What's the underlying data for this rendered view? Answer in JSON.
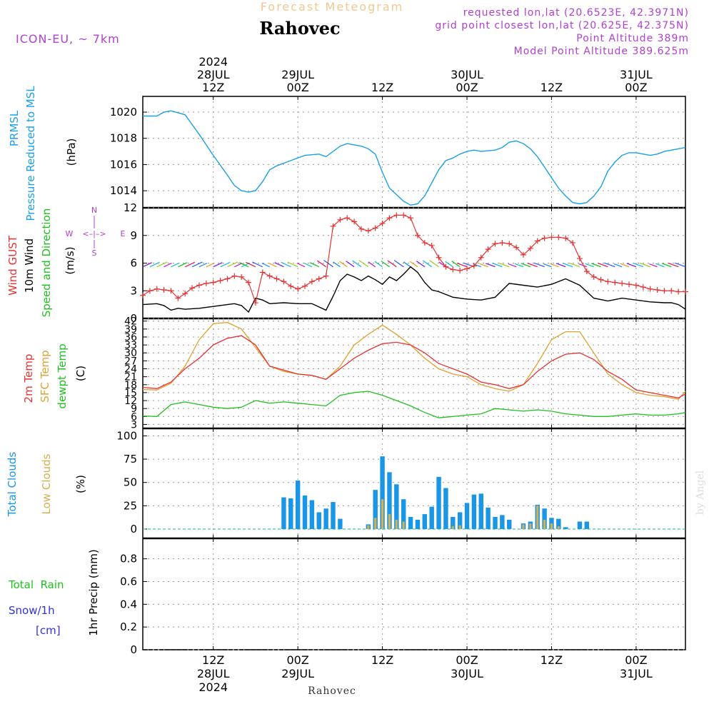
{
  "header": {
    "super_title": "Forecast Meteogram",
    "location": "Rahovec",
    "model": "ICON-EU, ~ 7km",
    "requested": "requested lon,lat (20.6523E, 42.3971N)",
    "grid_point": "grid point closest lon,lat (20.625E, 42.375N)",
    "point_altitude": "Point Altitude 389m",
    "model_point_altitude": "Model Point Altitude 389.625m",
    "footer_location": "Rahovec",
    "watermark": "by Angel"
  },
  "time_axis": {
    "top": [
      {
        "hour": "12Z",
        "date": "28JUL",
        "year": "2024"
      },
      {
        "hour": "00Z",
        "date": "29JUL"
      },
      {
        "hour": "12Z"
      },
      {
        "hour": "00Z",
        "date": "30JUL"
      },
      {
        "hour": "12Z"
      },
      {
        "hour": "00Z",
        "date": "31JUL"
      }
    ],
    "bottom": [
      {
        "hour": "12Z",
        "date": "28JUL",
        "year": "2024"
      },
      {
        "hour": "00Z",
        "date": "29JUL"
      },
      {
        "hour": "12Z"
      },
      {
        "hour": "00Z",
        "date": "30JUL"
      },
      {
        "hour": "12Z"
      },
      {
        "hour": "00Z",
        "date": "31JUL"
      }
    ],
    "x_unit": "hours from 28JUL 00Z",
    "xlim": [
      2,
      79
    ],
    "tick_hours": [
      12,
      24,
      36,
      48,
      60,
      72
    ]
  },
  "panel_labels": {
    "pressure": {
      "line1": "PRMSL",
      "line2": "Pressure Reduced to MSL",
      "unit": "(hPa)"
    },
    "wind": {
      "gust": "Wind GUST",
      "wind10": "10m Wind",
      "dir": "Speed and Direction",
      "unit": "(m/s)",
      "compass_n": "N",
      "compass_s": "S",
      "compass_w": "W",
      "compass_e": "E"
    },
    "temp": {
      "t2m": "2m Temp",
      "sfc": "SFC Temp",
      "dew": "dewpt Temp",
      "unit": "(C)"
    },
    "clouds": {
      "total": "Total Clouds",
      "low": "Low Clouds",
      "unit": "(%)"
    },
    "precip": {
      "rain": "Total  Rain",
      "snow": "Snow/1h",
      "cm": "[cm]",
      "unit": "1hr Precip (mm)"
    }
  },
  "colors": {
    "pressure": "#1aa0e6",
    "gust": "#e63232",
    "wind": "#000000",
    "t2m": "#e63232",
    "sfc": "#e0a030",
    "dew": "#20c020",
    "total_cloud": "#1a96e6",
    "low_cloud": "#d4b050",
    "title": "#b040d0",
    "super": "#f0c890",
    "rain": "#20c020",
    "snow": "#3030e0"
  },
  "chart_data": [
    {
      "type": "line",
      "id": "pressure",
      "ylabel": "(hPa)",
      "ylim": [
        1012.7,
        1021.2
      ],
      "yticks": [
        1014,
        1016,
        1018,
        1020
      ],
      "series": [
        {
          "name": "PRMSL",
          "x": [
            2,
            4,
            5,
            6,
            8,
            10,
            12,
            14,
            15,
            16,
            17,
            18,
            19,
            20,
            21,
            23,
            25,
            27,
            28,
            29,
            30,
            31,
            32,
            33,
            34,
            35,
            36,
            37,
            38,
            39,
            40,
            41,
            42,
            43,
            44,
            45,
            46,
            47,
            48,
            49,
            50,
            52,
            53,
            54,
            55,
            56,
            57,
            58,
            59,
            60,
            61,
            62,
            63,
            64,
            65,
            66,
            67,
            68,
            69,
            70,
            71,
            72,
            73,
            74,
            75,
            76,
            78,
            79
          ],
          "y": [
            1019.7,
            1019.7,
            1020.0,
            1020.1,
            1019.8,
            1018.3,
            1016.7,
            1015.2,
            1014.4,
            1014.0,
            1013.9,
            1014.0,
            1014.7,
            1015.6,
            1015.9,
            1016.3,
            1016.7,
            1016.8,
            1016.6,
            1017.0,
            1017.4,
            1017.6,
            1017.5,
            1017.4,
            1017.2,
            1016.8,
            1015.4,
            1014.2,
            1013.7,
            1013.2,
            1012.9,
            1013.0,
            1013.6,
            1014.6,
            1015.6,
            1016.3,
            1016.5,
            1016.8,
            1017.0,
            1017.1,
            1017.0,
            1017.1,
            1017.3,
            1017.7,
            1017.8,
            1017.6,
            1017.2,
            1016.6,
            1015.8,
            1015.0,
            1014.2,
            1013.6,
            1013.1,
            1013.0,
            1013.1,
            1013.6,
            1014.3,
            1015.5,
            1016.2,
            1016.7,
            1016.9,
            1016.9,
            1016.8,
            1016.7,
            1016.8,
            1017.0,
            1017.2,
            1017.3
          ]
        }
      ]
    },
    {
      "type": "line",
      "id": "wind",
      "ylabel": "(m/s)",
      "ylim": [
        0,
        12
      ],
      "yticks": [
        0,
        3,
        6,
        9,
        12
      ],
      "series": [
        {
          "name": "Wind GUST",
          "x": [
            2,
            3,
            4,
            5,
            6,
            7,
            8,
            9,
            10,
            11,
            12,
            13,
            14,
            15,
            16,
            17,
            18,
            19,
            20,
            21,
            22,
            23,
            24,
            25,
            26,
            27,
            28,
            29,
            30,
            31,
            32,
            33,
            34,
            35,
            36,
            37,
            38,
            39,
            40,
            41,
            42,
            43,
            44,
            45,
            46,
            47,
            48,
            49,
            50,
            51,
            52,
            53,
            54,
            55,
            56,
            57,
            58,
            59,
            60,
            61,
            62,
            63,
            64,
            65,
            66,
            67,
            68,
            69,
            70,
            71,
            72,
            73,
            74,
            75,
            76,
            77,
            78,
            79
          ],
          "y": [
            2.5,
            3.0,
            3.2,
            3.1,
            3.0,
            2.2,
            2.7,
            3.3,
            3.6,
            3.8,
            3.9,
            4.1,
            4.3,
            4.6,
            4.5,
            3.9,
            1.7,
            5.0,
            4.6,
            4.3,
            4.0,
            3.5,
            3.2,
            3.5,
            4.0,
            4.3,
            4.6,
            10.0,
            10.7,
            10.9,
            10.5,
            9.7,
            9.5,
            9.8,
            10.3,
            10.9,
            11.2,
            11.2,
            10.9,
            9.0,
            8.2,
            7.9,
            6.6,
            5.6,
            5.3,
            5.2,
            5.4,
            5.7,
            6.6,
            7.5,
            8.1,
            8.2,
            8.1,
            7.7,
            6.9,
            7.6,
            8.4,
            8.7,
            8.8,
            8.8,
            8.7,
            8.2,
            6.5,
            5.1,
            4.5,
            4.2,
            4.0,
            3.9,
            3.8,
            3.7,
            3.6,
            3.4,
            3.2,
            3.1,
            3.0,
            3.0,
            2.9,
            2.9
          ]
        },
        {
          "name": "10m Wind",
          "x": [
            2,
            4,
            5,
            6,
            7,
            8,
            10,
            12,
            14,
            15,
            16,
            17,
            18,
            19,
            20,
            22,
            24,
            26,
            28,
            29,
            30,
            31,
            32,
            33,
            34,
            35,
            36,
            37,
            38,
            39,
            40,
            41,
            42,
            43,
            44,
            46,
            48,
            50,
            52,
            54,
            56,
            58,
            60,
            62,
            64,
            66,
            68,
            70,
            72,
            74,
            76,
            77,
            78,
            79
          ],
          "y": [
            1.5,
            1.6,
            1.4,
            0.9,
            1.1,
            1.0,
            1.1,
            1.3,
            1.5,
            1.6,
            1.4,
            0.7,
            2.2,
            2.0,
            1.6,
            1.7,
            1.6,
            1.6,
            0.9,
            2.4,
            4.1,
            4.8,
            4.5,
            4.1,
            4.6,
            4.2,
            3.7,
            4.5,
            4.1,
            4.8,
            5.6,
            5.0,
            3.9,
            3.1,
            2.9,
            2.3,
            2.1,
            2.0,
            2.3,
            3.8,
            3.6,
            3.4,
            3.7,
            4.3,
            3.6,
            2.2,
            1.9,
            2.2,
            2.0,
            1.8,
            1.7,
            1.7,
            1.5,
            1.0
          ]
        }
      ],
      "arrows": {
        "x_start": 2,
        "x_end": 79,
        "band_y": 5.6
      }
    },
    {
      "type": "line",
      "id": "temp",
      "ylabel": "(C)",
      "ylim": [
        1.5,
        43
      ],
      "yticks": [
        3,
        6,
        9,
        12,
        15,
        18,
        21,
        24,
        27,
        30,
        33,
        36,
        39,
        42
      ],
      "series": [
        {
          "name": "2m Temp",
          "x": [
            2,
            4,
            6,
            8,
            10,
            12,
            14,
            16,
            18,
            20,
            22,
            24,
            26,
            28,
            30,
            32,
            34,
            36,
            38,
            40,
            42,
            44,
            46,
            48,
            50,
            52,
            54,
            56,
            58,
            60,
            62,
            64,
            66,
            68,
            70,
            72,
            74,
            76,
            78,
            79
          ],
          "y": [
            17,
            16.5,
            19,
            24,
            28,
            33,
            35.5,
            36.5,
            33,
            25,
            23.5,
            22,
            21.5,
            20,
            24,
            28,
            31,
            33.5,
            34,
            33,
            30,
            26,
            24,
            22,
            19,
            18,
            16.5,
            18,
            23,
            27,
            29.5,
            30,
            27.5,
            23,
            20,
            16,
            15,
            14,
            13,
            14.5
          ]
        },
        {
          "name": "SFC Temp",
          "x": [
            2,
            4,
            6,
            8,
            10,
            12,
            14,
            16,
            18,
            20,
            22,
            24,
            26,
            28,
            30,
            32,
            34,
            36,
            38,
            40,
            42,
            44,
            46,
            48,
            50,
            52,
            54,
            56,
            58,
            60,
            62,
            64,
            66,
            68,
            70,
            72,
            74,
            76,
            78,
            79
          ],
          "y": [
            16.2,
            16,
            18.5,
            25,
            35,
            41,
            41.5,
            39,
            32,
            25,
            23,
            22,
            21.5,
            20,
            25,
            33,
            37,
            40.5,
            37,
            33,
            28,
            24,
            22,
            21,
            18,
            16.5,
            15.5,
            18,
            26,
            35,
            38,
            38,
            30,
            22,
            18,
            15,
            14,
            13.5,
            12.5,
            15.5
          ]
        },
        {
          "name": "dewpt Temp",
          "x": [
            2,
            4,
            6,
            8,
            10,
            12,
            14,
            16,
            18,
            20,
            22,
            24,
            26,
            28,
            30,
            32,
            34,
            36,
            38,
            40,
            42,
            44,
            46,
            48,
            50,
            52,
            54,
            56,
            58,
            60,
            62,
            64,
            66,
            68,
            70,
            72,
            74,
            76,
            78,
            79
          ],
          "y": [
            6.2,
            6,
            10.5,
            11.5,
            10.5,
            9.5,
            9,
            9.5,
            12,
            11,
            11.5,
            11,
            10.5,
            10,
            14,
            15,
            15.5,
            14,
            12,
            10,
            7.5,
            5.5,
            6,
            6.5,
            7,
            9,
            8.5,
            8,
            8.5,
            8,
            7,
            6.5,
            6,
            6,
            6.5,
            7,
            6.5,
            6.5,
            7,
            7.5
          ]
        }
      ]
    },
    {
      "type": "bar",
      "id": "clouds",
      "ylabel": "(%)",
      "ylim": [
        -10,
        108
      ],
      "yticks": [
        0,
        25,
        50,
        75,
        100
      ],
      "series": [
        {
          "name": "Total Clouds",
          "x": [
            22,
            23,
            24,
            25,
            26,
            27,
            28,
            29,
            30,
            34,
            35,
            36,
            37,
            38,
            39,
            40,
            41,
            42,
            43,
            44,
            45,
            46,
            47,
            48,
            49,
            50,
            51,
            52,
            53,
            54,
            56,
            57,
            58,
            59,
            60,
            61,
            62,
            64,
            65
          ],
          "y": [
            34,
            33,
            52,
            36,
            31,
            18,
            22,
            29,
            11,
            5,
            42,
            78,
            61,
            48,
            32,
            13,
            10,
            16,
            24,
            56,
            44,
            13,
            18,
            28,
            37,
            38,
            23,
            13,
            15,
            10,
            6,
            8,
            26,
            22,
            12,
            11,
            2,
            8,
            8
          ]
        },
        {
          "name": "Low Clouds",
          "x": [
            34,
            35,
            36,
            37,
            38,
            39,
            46,
            47,
            56,
            57,
            58,
            59,
            60,
            61
          ],
          "y": [
            4,
            12,
            32,
            16,
            10,
            8,
            3,
            4,
            5,
            6,
            25,
            10,
            6,
            3
          ]
        }
      ]
    },
    {
      "type": "line",
      "id": "precip",
      "ylabel": "1hr Precip (mm)",
      "ylim": [
        0,
        0.98
      ],
      "yticks": [
        0,
        0.2,
        0.4,
        0.6,
        0.8
      ],
      "series": []
    }
  ]
}
